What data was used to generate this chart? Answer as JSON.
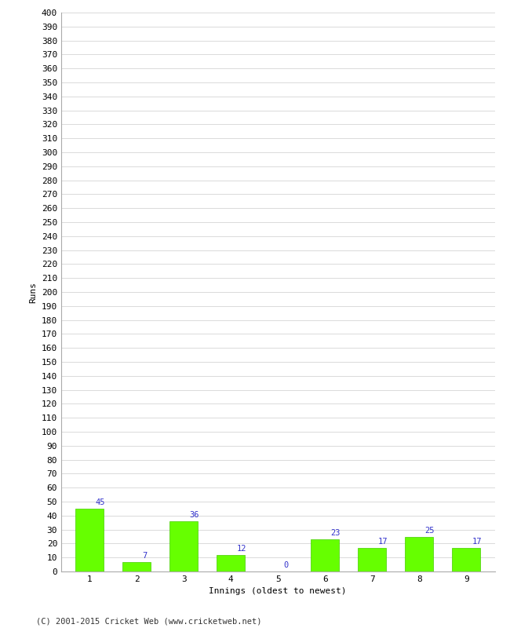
{
  "categories": [
    "1",
    "2",
    "3",
    "4",
    "5",
    "6",
    "7",
    "8",
    "9"
  ],
  "values": [
    45,
    7,
    36,
    12,
    0,
    23,
    17,
    25,
    17
  ],
  "bar_color": "#66ff00",
  "bar_edge_color": "#44cc00",
  "label_color": "#3333cc",
  "ylabel": "Runs",
  "xlabel": "Innings (oldest to newest)",
  "ylim_min": 0,
  "ylim_max": 400,
  "ytick_major_step": 10,
  "background_color": "#ffffff",
  "grid_color": "#cccccc",
  "footer_text": "(C) 2001-2015 Cricket Web (www.cricketweb.net)",
  "label_fontsize": 7.5,
  "axis_fontsize": 8,
  "footer_fontsize": 7.5,
  "ylabel_fontsize": 8
}
